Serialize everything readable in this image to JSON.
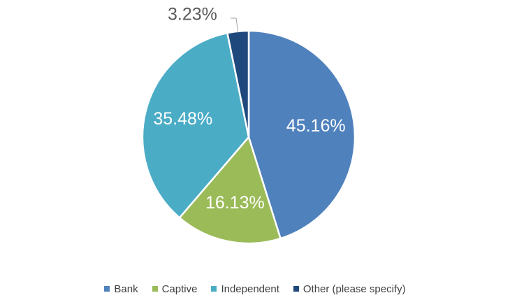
{
  "chart_data": {
    "type": "pie",
    "categories": [
      "Bank",
      "Captive",
      "Independent",
      "Other (please specify)"
    ],
    "values": [
      45.16,
      16.13,
      35.48,
      3.23
    ],
    "data_labels": [
      "45.16%",
      "16.13%",
      "35.48%",
      "3.23%"
    ],
    "colors": [
      "#4f81bd",
      "#9bbb59",
      "#4bacc6",
      "#1f497d"
    ],
    "start_angle_deg": 0,
    "direction": "clockwise",
    "legend_position": "bottom"
  },
  "legend": {
    "items": [
      {
        "label": "Bank",
        "color": "#4f81bd"
      },
      {
        "label": "Captive",
        "color": "#9bbb59"
      },
      {
        "label": "Independent",
        "color": "#4bacc6"
      },
      {
        "label": "Other (please specify)",
        "color": "#1f497d"
      }
    ]
  }
}
